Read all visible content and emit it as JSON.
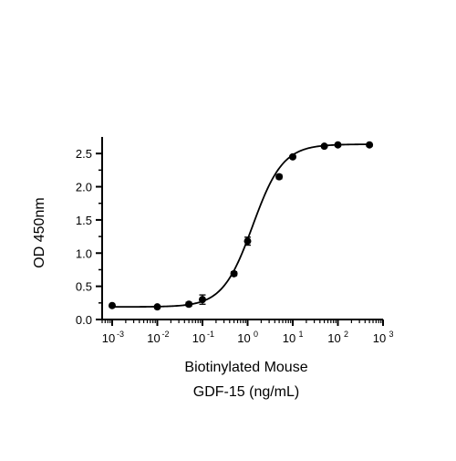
{
  "chart_data": {
    "type": "scatter",
    "xlabel_lines": [
      "Biotinylated Mouse",
      "GDF-15 (ng/mL)"
    ],
    "ylabel": "OD 450nm",
    "x_scale": "log",
    "xlim": [
      0.0006,
      1000
    ],
    "ylim": [
      0,
      2.75
    ],
    "x_tick_labels": [
      "10",
      "10",
      "10",
      "10",
      "10",
      "10",
      "10"
    ],
    "x_tick_exponents": [
      "-3",
      "-2",
      "-1",
      "0",
      "1",
      "2",
      "3"
    ],
    "x_tick_values": [
      0.001,
      0.01,
      0.1,
      1,
      10,
      100,
      1000
    ],
    "y_tick_labels": [
      "0.0",
      "0.5",
      "1.0",
      "1.5",
      "2.0",
      "2.5"
    ],
    "y_tick_values": [
      0,
      0.5,
      1.0,
      1.5,
      2.0,
      2.5
    ],
    "grid": false,
    "series": [
      {
        "points": [
          {
            "x": 0.001,
            "y": 0.21,
            "err": 0.02
          },
          {
            "x": 0.01,
            "y": 0.19,
            "err": 0.02
          },
          {
            "x": 0.05,
            "y": 0.23,
            "err": 0.03
          },
          {
            "x": 0.1,
            "y": 0.3,
            "err": 0.07
          },
          {
            "x": 0.5,
            "y": 0.69,
            "err": 0.03
          },
          {
            "x": 1.0,
            "y": 1.18,
            "err": 0.06
          },
          {
            "x": 5.0,
            "y": 2.15,
            "err": 0.03
          },
          {
            "x": 10.0,
            "y": 2.45,
            "err": 0.02
          },
          {
            "x": 50.0,
            "y": 2.61,
            "err": 0.02
          },
          {
            "x": 100.0,
            "y": 2.63,
            "err": 0.02
          },
          {
            "x": 500.0,
            "y": 2.63,
            "err": 0.02
          }
        ],
        "fit": {
          "model": "4PL",
          "bottom": 0.19,
          "top": 2.64,
          "ec50": 1.3,
          "hill": 1.3
        }
      }
    ]
  }
}
